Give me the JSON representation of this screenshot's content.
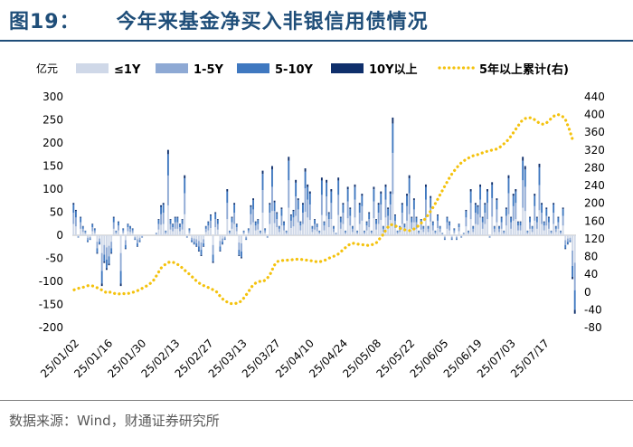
{
  "header": {
    "figure_label": "图19：",
    "title": "今年来基金净买入非银信用债情况"
  },
  "source": "数据来源：Wind，财通证券研究所",
  "chart_data": {
    "type": "bar",
    "title": "今年来基金净买入非银信用债情况",
    "unit_label": "亿元",
    "left_axis": {
      "min": -200,
      "max": 300,
      "ticks": [
        300,
        250,
        200,
        150,
        100,
        50,
        0,
        -50,
        -100,
        -150,
        -200
      ]
    },
    "right_axis": {
      "min": -80,
      "max": 440,
      "ticks": [
        440,
        400,
        360,
        320,
        280,
        240,
        200,
        160,
        120,
        80,
        40,
        0,
        -40,
        -80
      ]
    },
    "x_ticks": [
      "25/01/02",
      "25/01/16",
      "25/01/30",
      "25/02/13",
      "25/02/27",
      "25/03/13",
      "25/03/27",
      "25/04/10",
      "25/04/24",
      "25/05/08",
      "25/05/22",
      "25/06/05",
      "25/06/19",
      "25/07/03",
      "25/07/17"
    ],
    "legend_position": "top",
    "series": [
      {
        "name": "≤1Y",
        "color": "#cfd8e8",
        "kind": "bar",
        "axis": "left"
      },
      {
        "name": "1-5Y",
        "color": "#8ea9d4",
        "kind": "bar",
        "axis": "left"
      },
      {
        "name": "5-10Y",
        "color": "#3f78c0",
        "kind": "bar",
        "axis": "left"
      },
      {
        "name": "10Y以上",
        "color": "#0f2f6b",
        "kind": "bar",
        "axis": "left"
      },
      {
        "name": "5年以上累计(右)",
        "color": "#f4c20d",
        "kind": "dotted-line",
        "axis": "right"
      }
    ],
    "bar_totals": [
      70,
      55,
      -5,
      40,
      20,
      10,
      -15,
      -10,
      25,
      15,
      -40,
      -20,
      -110,
      -60,
      -75,
      -65,
      -40,
      40,
      10,
      30,
      -110,
      15,
      -30,
      25,
      20,
      15,
      -10,
      -25,
      -15,
      -5,
      0,
      0,
      0,
      0,
      0,
      5,
      35,
      65,
      70,
      10,
      185,
      35,
      25,
      40,
      40,
      25,
      35,
      130,
      -5,
      15,
      -15,
      -20,
      -25,
      -35,
      -45,
      -25,
      20,
      30,
      45,
      -60,
      50,
      35,
      -35,
      -20,
      -10,
      100,
      10,
      40,
      70,
      25,
      -45,
      -50,
      10,
      -10,
      15,
      65,
      80,
      30,
      35,
      10,
      140,
      15,
      -5,
      70,
      150,
      75,
      50,
      20,
      60,
      30,
      10,
      170,
      45,
      55,
      120,
      80,
      30,
      70,
      145,
      110,
      95,
      20,
      35,
      25,
      10,
      125,
      30,
      120,
      50,
      100,
      20,
      5,
      125,
      40,
      70,
      10,
      105,
      60,
      20,
      110,
      10,
      70,
      90,
      10,
      30,
      50,
      10,
      105,
      35,
      70,
      95,
      20,
      110,
      60,
      95,
      255,
      45,
      10,
      20,
      70,
      25,
      90,
      130,
      40,
      80,
      40,
      10,
      35,
      20,
      110,
      20,
      85,
      30,
      10,
      45,
      20,
      5,
      -10,
      40,
      30,
      -10,
      15,
      -10,
      25,
      -5,
      5,
      55,
      10,
      100,
      20,
      70,
      65,
      110,
      40,
      70,
      100,
      -5,
      115,
      20,
      80,
      20,
      40,
      10,
      60,
      130,
      40,
      90,
      100,
      30,
      30,
      170,
      150,
      10,
      40,
      20,
      90,
      40,
      155,
      70,
      30,
      60,
      40,
      10,
      70,
      20,
      40,
      10,
      60,
      -30,
      -20,
      -15,
      -95,
      -170
    ],
    "cumulative_5y_plus": [
      5,
      8,
      10,
      12,
      15,
      14,
      11,
      7,
      3,
      -2,
      0,
      -3,
      -5,
      -3,
      -4,
      -3,
      -1,
      2,
      5,
      10,
      14,
      20,
      28,
      42,
      55,
      62,
      67,
      68,
      64,
      60,
      52,
      45,
      38,
      30,
      22,
      17,
      13,
      10,
      6,
      2,
      -8,
      -17,
      -22,
      -26,
      -26,
      -25,
      -20,
      -10,
      2,
      14,
      21,
      24,
      24,
      30,
      42,
      60,
      69,
      71,
      72,
      72,
      73,
      74,
      74,
      73,
      72,
      71,
      69,
      68,
      69,
      72,
      76,
      80,
      82,
      88,
      96,
      103,
      109,
      110,
      108,
      107,
      106,
      105,
      107,
      110,
      120,
      130,
      144,
      152,
      151,
      146,
      142,
      140,
      138,
      140,
      145,
      152,
      160,
      170,
      182,
      195,
      210,
      225,
      240,
      255,
      268,
      278,
      288,
      295,
      300,
      305,
      308,
      310,
      313,
      316,
      318,
      320,
      322,
      326,
      333,
      340,
      350,
      362,
      374,
      385,
      391,
      393,
      392,
      386,
      380,
      378,
      382,
      390,
      397,
      400,
      398,
      390,
      370,
      345
    ]
  }
}
